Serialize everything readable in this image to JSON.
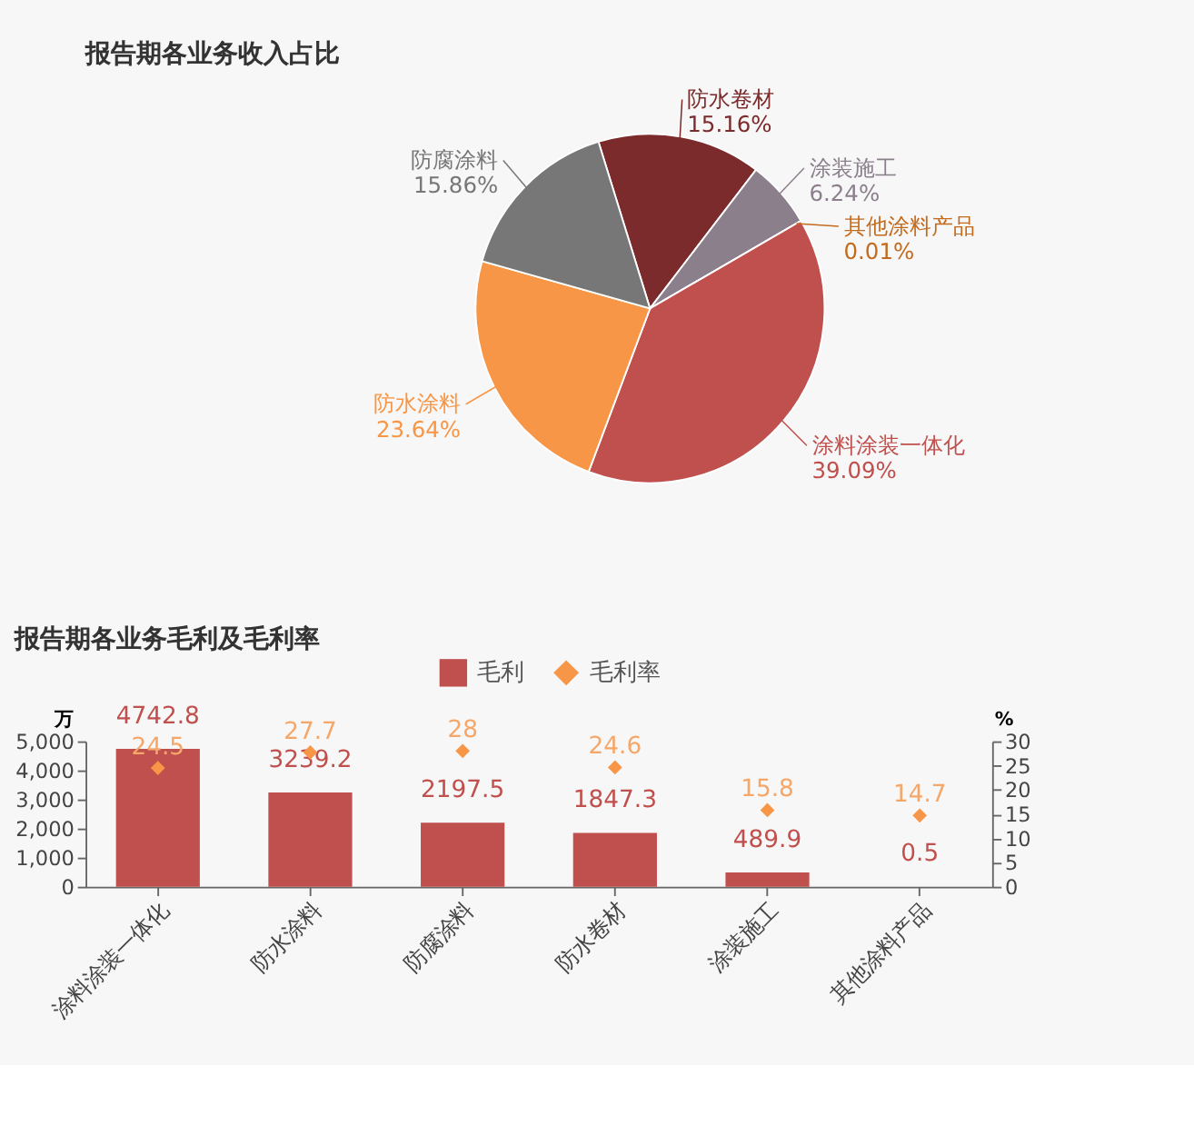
{
  "chart_data": [
    {
      "type": "pie",
      "title": "报告期各业务收入占比",
      "categories": [
        "防水卷材",
        "涂装施工",
        "其他涂料产品",
        "涂料涂装一体化",
        "防水涂料",
        "防腐涂料"
      ],
      "values": [
        15.16,
        6.24,
        0.01,
        39.09,
        23.64,
        15.86
      ],
      "value_labels": [
        "15.16%",
        "6.24%",
        "0.01%",
        "39.09%",
        "23.64%",
        "15.86%"
      ],
      "colors": [
        "#7b2b2b",
        "#8c7f8c",
        "#c46a1c",
        "#c0504d",
        "#f79646",
        "#777777"
      ]
    },
    {
      "type": "bar",
      "title": "报告期各业务毛利及毛利率",
      "categories": [
        "涂料涂装一体化",
        "防水涂料",
        "防腐涂料",
        "防水卷材",
        "涂装施工",
        "其他涂料产品"
      ],
      "series": [
        {
          "name": "毛利",
          "type": "bar",
          "color": "#c0504d",
          "values": [
            4742.8,
            3239.2,
            2197.5,
            1847.3,
            489.9,
            0.5
          ]
        },
        {
          "name": "毛利率",
          "type": "scatter",
          "axis": "y2",
          "marker": "diamond",
          "color": "#f79646",
          "values": [
            24.5,
            27.7,
            28,
            24.6,
            15.8,
            14.7
          ]
        }
      ],
      "ylabel": "万",
      "y2label": "%",
      "ylim": [
        0,
        5000
      ],
      "yticks": [
        0,
        {
          "value": 1000,
          "label": "1,000"
        },
        {
          "value": 2000,
          "label": "2,000"
        },
        {
          "value": 3000,
          "label": "3,000"
        },
        {
          "value": 4000,
          "label": "4,000"
        },
        {
          "value": 5000,
          "label": "5,000"
        }
      ],
      "y2lim": [
        0,
        30
      ],
      "y2ticks": [
        0,
        5,
        10,
        15,
        20,
        25,
        30
      ],
      "data_labels": true,
      "legend": "top"
    }
  ]
}
